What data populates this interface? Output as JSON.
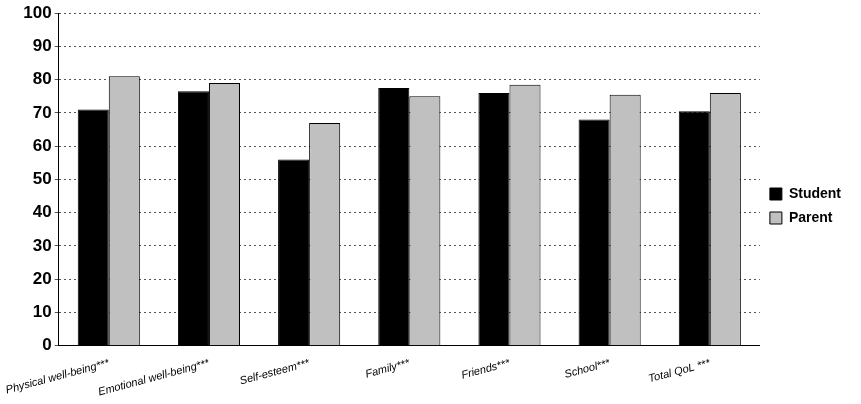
{
  "chart_data": {
    "type": "bar",
    "categories": [
      "Physical well-being***",
      "Emotional well-being***",
      "Self-esteem***",
      "Family***",
      "Friends***",
      "School***",
      "Total QoL ***"
    ],
    "series": [
      {
        "name": "Student",
        "color": "#000000",
        "values": [
          71,
          76.5,
          56,
          77.5,
          76,
          68,
          70.5
        ]
      },
      {
        "name": "Parent",
        "color": "#c0c0c0",
        "values": [
          81,
          79,
          67,
          75,
          78.5,
          75.5,
          76
        ]
      }
    ],
    "ylim": [
      0,
      100
    ],
    "yticks": [
      0,
      10,
      20,
      30,
      40,
      50,
      60,
      70,
      80,
      90,
      100
    ],
    "grid": true,
    "legend": "right"
  }
}
